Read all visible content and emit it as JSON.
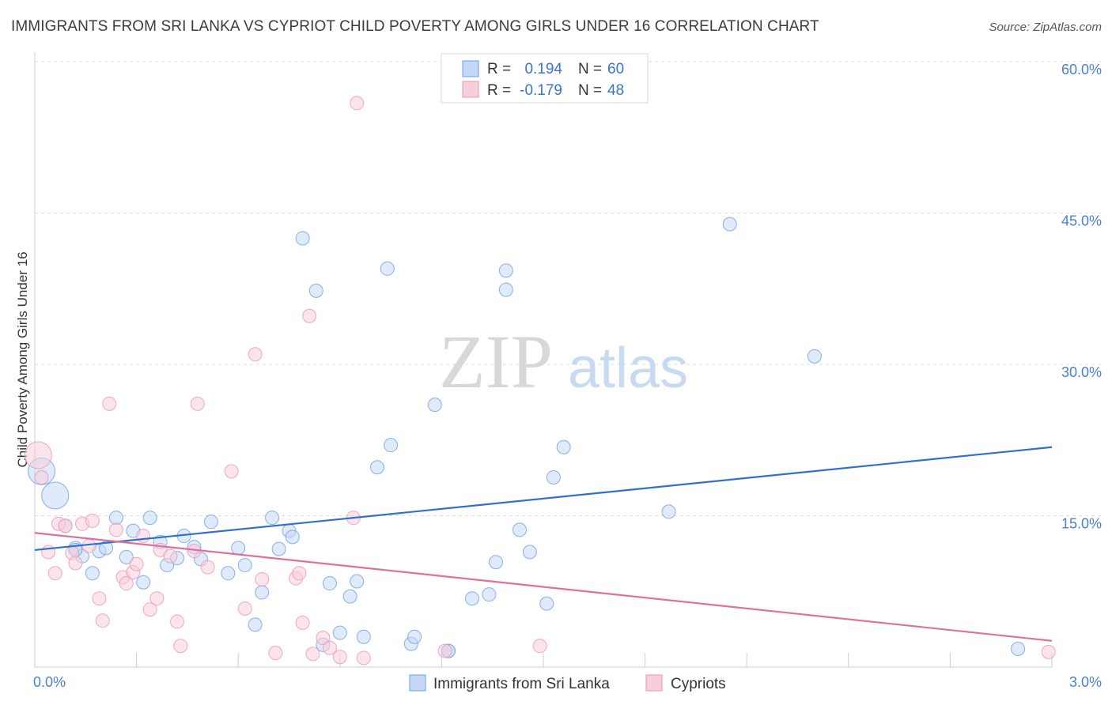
{
  "header": {
    "title": "IMMIGRANTS FROM SRI LANKA VS CYPRIOT CHILD POVERTY AMONG GIRLS UNDER 16 CORRELATION CHART",
    "source": "Source: ZipAtlas.com"
  },
  "watermark": {
    "part1": "ZIP",
    "part2": "atlas"
  },
  "legend": {
    "rows": [
      {
        "r_label": "R =",
        "r_value": "0.194",
        "n_label": "N =",
        "n_value": "60"
      },
      {
        "r_label": "R =",
        "r_value": "-0.179",
        "n_label": "N =",
        "n_value": "48"
      }
    ]
  },
  "bottom_legend": {
    "series1": "Immigrants from Sri Lanka",
    "series2": "Cypriots"
  },
  "chart_data": {
    "type": "scatter",
    "title": "IMMIGRANTS FROM SRI LANKA VS CYPRIOT CHILD POVERTY AMONG GIRLS UNDER 16 CORRELATION CHART",
    "xlabel": "",
    "ylabel": "Child Poverty Among Girls Under 16",
    "xlim": [
      0,
      3.0
    ],
    "ylim": [
      0,
      62
    ],
    "x_tick_labels": [
      {
        "value": 0,
        "label": "0.0%"
      },
      {
        "value": 3.0,
        "label": "3.0%"
      }
    ],
    "y_tick_labels": [
      {
        "value": 15,
        "label": "15.0%"
      },
      {
        "value": 30,
        "label": "30.0%"
      },
      {
        "value": 45,
        "label": "45.0%"
      },
      {
        "value": 60,
        "label": "60.0%"
      }
    ],
    "grid": true,
    "colors": {
      "series1": "#6b9ee8",
      "series1_fill": "#c4d9f6",
      "series1_line": "#2f6fce",
      "series2": "#e896b2",
      "series2_fill": "#f8cdda",
      "series2_line": "#e0709a"
    },
    "series": [
      {
        "name": "Immigrants from Sri Lanka",
        "r": 0.194,
        "n": 60,
        "trend": {
          "x": [
            0,
            3.0
          ],
          "y": [
            11.6,
            21.8
          ]
        },
        "points": [
          {
            "x": 0.02,
            "y": 19.4,
            "big": true
          },
          {
            "x": 0.06,
            "y": 17.0,
            "big": true
          },
          {
            "x": 0.09,
            "y": 14.0
          },
          {
            "x": 0.12,
            "y": 11.8
          },
          {
            "x": 0.14,
            "y": 11.0
          },
          {
            "x": 0.17,
            "y": 9.3
          },
          {
            "x": 0.19,
            "y": 11.5
          },
          {
            "x": 0.21,
            "y": 11.8
          },
          {
            "x": 0.24,
            "y": 14.8
          },
          {
            "x": 0.27,
            "y": 10.9
          },
          {
            "x": 0.29,
            "y": 13.5
          },
          {
            "x": 0.32,
            "y": 8.4
          },
          {
            "x": 0.34,
            "y": 14.8
          },
          {
            "x": 0.37,
            "y": 12.4
          },
          {
            "x": 0.39,
            "y": 10.1
          },
          {
            "x": 0.42,
            "y": 10.8
          },
          {
            "x": 0.44,
            "y": 13.0
          },
          {
            "x": 0.47,
            "y": 11.9
          },
          {
            "x": 0.49,
            "y": 10.7
          },
          {
            "x": 0.52,
            "y": 14.4
          },
          {
            "x": 0.57,
            "y": 9.3
          },
          {
            "x": 0.6,
            "y": 11.8
          },
          {
            "x": 0.62,
            "y": 10.1
          },
          {
            "x": 0.65,
            "y": 4.2
          },
          {
            "x": 0.67,
            "y": 7.4
          },
          {
            "x": 0.7,
            "y": 14.8
          },
          {
            "x": 0.72,
            "y": 11.7
          },
          {
            "x": 0.75,
            "y": 13.5
          },
          {
            "x": 0.76,
            "y": 12.9
          },
          {
            "x": 0.79,
            "y": 42.5
          },
          {
            "x": 0.83,
            "y": 37.3
          },
          {
            "x": 0.85,
            "y": 2.2
          },
          {
            "x": 0.87,
            "y": 8.3
          },
          {
            "x": 0.9,
            "y": 3.4
          },
          {
            "x": 0.93,
            "y": 7.0
          },
          {
            "x": 0.95,
            "y": 8.5
          },
          {
            "x": 0.97,
            "y": 3.0
          },
          {
            "x": 1.01,
            "y": 19.8
          },
          {
            "x": 1.04,
            "y": 39.5
          },
          {
            "x": 1.05,
            "y": 22.0
          },
          {
            "x": 1.11,
            "y": 2.3
          },
          {
            "x": 1.12,
            "y": 3.0
          },
          {
            "x": 1.18,
            "y": 26.0
          },
          {
            "x": 1.22,
            "y": 1.6
          },
          {
            "x": 1.22,
            "y": 1.6
          },
          {
            "x": 1.29,
            "y": 6.8
          },
          {
            "x": 1.36,
            "y": 10.4
          },
          {
            "x": 1.34,
            "y": 7.2
          },
          {
            "x": 1.39,
            "y": 39.3
          },
          {
            "x": 1.39,
            "y": 37.4
          },
          {
            "x": 1.43,
            "y": 13.6
          },
          {
            "x": 1.46,
            "y": 11.4
          },
          {
            "x": 1.51,
            "y": 6.3
          },
          {
            "x": 1.53,
            "y": 18.8
          },
          {
            "x": 1.56,
            "y": 21.8
          },
          {
            "x": 1.87,
            "y": 15.4
          },
          {
            "x": 2.05,
            "y": 43.9
          },
          {
            "x": 2.3,
            "y": 30.8
          },
          {
            "x": 2.9,
            "y": 1.8
          },
          {
            "x": 0.12,
            "y": 11.6
          }
        ]
      },
      {
        "name": "Cypriots",
        "r": -0.179,
        "n": 48,
        "trend": {
          "x": [
            0,
            3.0
          ],
          "y": [
            13.3,
            2.6
          ]
        },
        "points": [
          {
            "x": 0.01,
            "y": 21.0,
            "big": true
          },
          {
            "x": 0.02,
            "y": 18.8
          },
          {
            "x": 0.04,
            "y": 11.4
          },
          {
            "x": 0.06,
            "y": 9.3
          },
          {
            "x": 0.07,
            "y": 14.2
          },
          {
            "x": 0.09,
            "y": 14.0
          },
          {
            "x": 0.11,
            "y": 11.3
          },
          {
            "x": 0.12,
            "y": 10.3
          },
          {
            "x": 0.14,
            "y": 14.2
          },
          {
            "x": 0.16,
            "y": 12.0
          },
          {
            "x": 0.17,
            "y": 14.5
          },
          {
            "x": 0.19,
            "y": 6.8
          },
          {
            "x": 0.2,
            "y": 4.6
          },
          {
            "x": 0.22,
            "y": 26.1
          },
          {
            "x": 0.24,
            "y": 13.6
          },
          {
            "x": 0.26,
            "y": 8.9
          },
          {
            "x": 0.27,
            "y": 8.3
          },
          {
            "x": 0.29,
            "y": 9.4
          },
          {
            "x": 0.3,
            "y": 10.2
          },
          {
            "x": 0.32,
            "y": 13.0
          },
          {
            "x": 0.34,
            "y": 5.7
          },
          {
            "x": 0.36,
            "y": 6.8
          },
          {
            "x": 0.37,
            "y": 11.6
          },
          {
            "x": 0.4,
            "y": 11.0
          },
          {
            "x": 0.42,
            "y": 4.5
          },
          {
            "x": 0.43,
            "y": 2.1
          },
          {
            "x": 0.47,
            "y": 11.5
          },
          {
            "x": 0.48,
            "y": 26.1
          },
          {
            "x": 0.51,
            "y": 9.9
          },
          {
            "x": 0.58,
            "y": 19.4
          },
          {
            "x": 0.62,
            "y": 5.8
          },
          {
            "x": 0.65,
            "y": 31.0
          },
          {
            "x": 0.67,
            "y": 8.7
          },
          {
            "x": 0.71,
            "y": 1.4
          },
          {
            "x": 0.77,
            "y": 8.8
          },
          {
            "x": 0.78,
            "y": 9.3
          },
          {
            "x": 0.79,
            "y": 4.4
          },
          {
            "x": 0.81,
            "y": 34.8
          },
          {
            "x": 0.82,
            "y": 1.3
          },
          {
            "x": 0.85,
            "y": 2.9
          },
          {
            "x": 0.87,
            "y": 1.9
          },
          {
            "x": 0.9,
            "y": 1.0
          },
          {
            "x": 0.94,
            "y": 14.8
          },
          {
            "x": 0.95,
            "y": 55.9
          },
          {
            "x": 0.97,
            "y": 0.9
          },
          {
            "x": 1.21,
            "y": 1.6
          },
          {
            "x": 1.49,
            "y": 2.1
          },
          {
            "x": 2.99,
            "y": 1.5
          }
        ]
      }
    ]
  }
}
